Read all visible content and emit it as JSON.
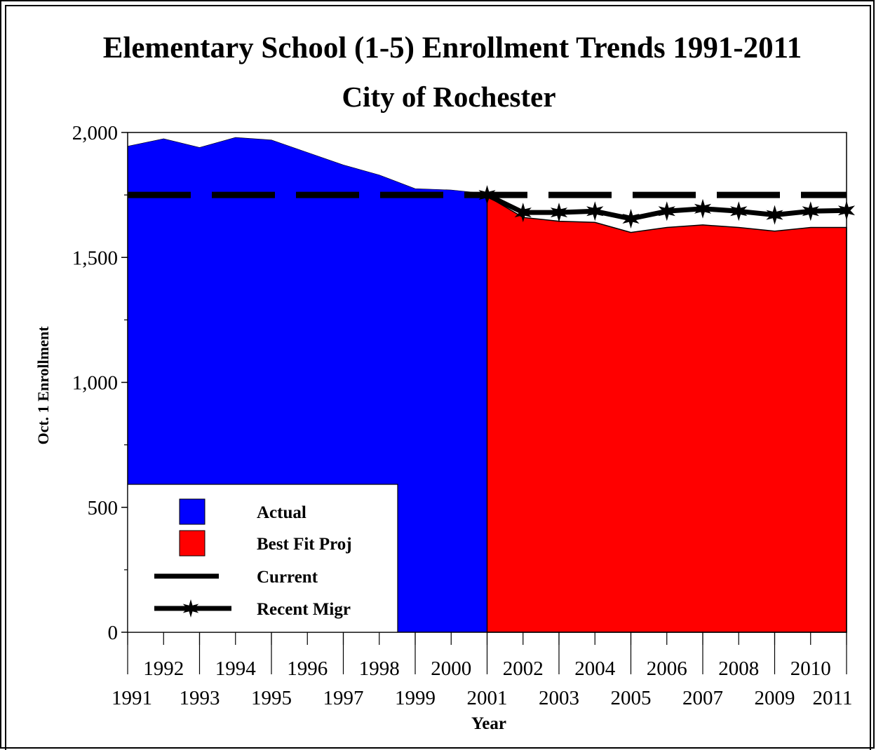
{
  "chart_data": {
    "type": "area",
    "title": "Elementary School (1-5) Enrollment Trends 1991-2011",
    "subtitle": "City of Rochester",
    "xlabel": "Year",
    "ylabel": "Oct. 1 Enrollment",
    "xlim": [
      1991,
      2011
    ],
    "ylim": [
      0,
      2000
    ],
    "y_ticks": [
      0,
      500,
      1000,
      1500,
      2000
    ],
    "y_tick_labels": [
      "0",
      "500",
      "1,000",
      "1,500",
      "2,000"
    ],
    "x_ticks_upper": [
      "1992",
      "1994",
      "1996",
      "1998",
      "2000",
      "2002",
      "2004",
      "2006",
      "2008",
      "2010"
    ],
    "x_ticks_lower": [
      "1991",
      "1993",
      "1995",
      "1997",
      "1999",
      "2001",
      "2003",
      "2005",
      "2007",
      "2009",
      "2011"
    ],
    "legend_position": "bottom-left",
    "series": [
      {
        "name": "Actual",
        "style": "area",
        "color": "#0000ff",
        "x": [
          1991,
          1992,
          1993,
          1994,
          1995,
          1996,
          1997,
          1998,
          1999,
          2000,
          2001
        ],
        "y": [
          1945,
          1975,
          1940,
          1980,
          1970,
          1920,
          1870,
          1830,
          1775,
          1770,
          1755
        ]
      },
      {
        "name": "Best Fit Proj",
        "style": "area",
        "color": "#ff0000",
        "x": [
          2001,
          2002,
          2003,
          2004,
          2005,
          2006,
          2007,
          2008,
          2009,
          2010,
          2011
        ],
        "y": [
          1745,
          1660,
          1645,
          1640,
          1600,
          1620,
          1630,
          1620,
          1605,
          1620,
          1620
        ]
      },
      {
        "name": "Current",
        "style": "dashed-line",
        "color": "#000000",
        "x": [
          1991,
          2011
        ],
        "y": [
          1750,
          1750
        ]
      },
      {
        "name": "Recent Migr",
        "style": "line-star",
        "color": "#000000",
        "x": [
          2001,
          2002,
          2003,
          2004,
          2005,
          2006,
          2007,
          2008,
          2009,
          2010,
          2011
        ],
        "y": [
          1750,
          1680,
          1680,
          1685,
          1655,
          1685,
          1695,
          1685,
          1670,
          1685,
          1688
        ]
      }
    ]
  },
  "page_label": "ig"
}
